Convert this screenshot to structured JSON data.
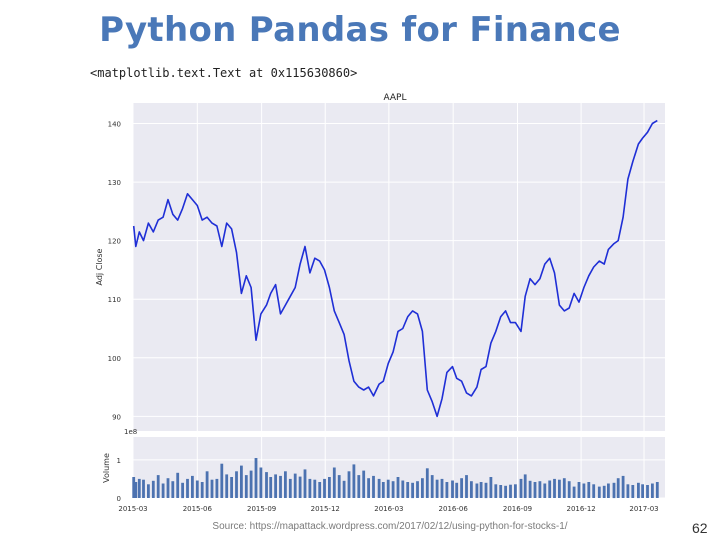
{
  "slide": {
    "title": "Python Pandas for Finance",
    "code_output": "<matplotlib.text.Text at 0x115630860>",
    "source": "Source: https://mapattack.wordpress.com/2017/02/12/using-python-for-stocks-1/",
    "page_number": "62"
  },
  "colors": {
    "title": "#4a78b8",
    "price_line": "#1f2fd6",
    "volume_bars": "#4c72b0",
    "plot_bg": "#eaeaf2",
    "grid": "#ffffff"
  },
  "chart_data": [
    {
      "type": "line",
      "title": "AAPL",
      "ylabel": "Adj Close",
      "xlabel": "",
      "xlim": [
        "2015-03-01",
        "2017-03-31"
      ],
      "ylim": [
        87.5,
        143.5
      ],
      "yticks": [
        90,
        100,
        110,
        120,
        130,
        140
      ],
      "grid": true,
      "series": [
        {
          "x": [
            "2015-03-02",
            "2015-03-05",
            "2015-03-10",
            "2015-03-16",
            "2015-03-23",
            "2015-03-30",
            "2015-04-06",
            "2015-04-13",
            "2015-04-20",
            "2015-04-27",
            "2015-05-04",
            "2015-05-11",
            "2015-05-18",
            "2015-05-25",
            "2015-06-01",
            "2015-06-08",
            "2015-06-15",
            "2015-06-22",
            "2015-06-29",
            "2015-07-06",
            "2015-07-13",
            "2015-07-20",
            "2015-07-27",
            "2015-08-03",
            "2015-08-10",
            "2015-08-17",
            "2015-08-24",
            "2015-08-31",
            "2015-09-08",
            "2015-09-14",
            "2015-09-21",
            "2015-09-28",
            "2015-10-05",
            "2015-10-12",
            "2015-10-19",
            "2015-10-26",
            "2015-11-02",
            "2015-11-09",
            "2015-11-16",
            "2015-11-23",
            "2015-11-30",
            "2015-12-07",
            "2015-12-14",
            "2015-12-21",
            "2015-12-28",
            "2016-01-04",
            "2016-01-11",
            "2016-01-18",
            "2016-01-25",
            "2016-02-01",
            "2016-02-08",
            "2016-02-16",
            "2016-02-22",
            "2016-02-29",
            "2016-03-07",
            "2016-03-14",
            "2016-03-21",
            "2016-03-28",
            "2016-04-04",
            "2016-04-11",
            "2016-04-18",
            "2016-04-25",
            "2016-05-02",
            "2016-05-09",
            "2016-05-16",
            "2016-05-23",
            "2016-05-31",
            "2016-06-06",
            "2016-06-13",
            "2016-06-20",
            "2016-06-27",
            "2016-07-05",
            "2016-07-11",
            "2016-07-18",
            "2016-07-25",
            "2016-08-01",
            "2016-08-08",
            "2016-08-15",
            "2016-08-22",
            "2016-08-29",
            "2016-09-06",
            "2016-09-12",
            "2016-09-19",
            "2016-09-26",
            "2016-10-03",
            "2016-10-10",
            "2016-10-17",
            "2016-10-24",
            "2016-10-31",
            "2016-11-07",
            "2016-11-14",
            "2016-11-21",
            "2016-11-28",
            "2016-12-05",
            "2016-12-12",
            "2016-12-19",
            "2016-12-27",
            "2017-01-03",
            "2017-01-09",
            "2017-01-17",
            "2017-01-23",
            "2017-01-30",
            "2017-02-06",
            "2017-02-13",
            "2017-02-21",
            "2017-02-27",
            "2017-03-06",
            "2017-03-13",
            "2017-03-20"
          ],
          "values": [
            122.5,
            119.0,
            121.5,
            120.0,
            123.0,
            121.5,
            123.5,
            124.0,
            127.0,
            124.5,
            123.5,
            125.5,
            128.0,
            127.0,
            126.0,
            123.5,
            124.0,
            123.0,
            122.5,
            119.0,
            123.0,
            122.0,
            118.0,
            111.0,
            114.0,
            112.0,
            103.0,
            107.5,
            109.0,
            111.0,
            112.5,
            107.5,
            109.0,
            110.5,
            112.0,
            116.0,
            119.0,
            114.5,
            117.0,
            116.5,
            115.0,
            112.0,
            108.0,
            106.0,
            104.0,
            99.5,
            96.0,
            95.0,
            94.5,
            95.0,
            93.5,
            95.5,
            96.0,
            99.0,
            101.0,
            104.5,
            105.0,
            107.0,
            108.0,
            107.5,
            104.5,
            94.5,
            92.5,
            90.0,
            93.0,
            97.5,
            98.5,
            96.5,
            96.0,
            94.0,
            93.5,
            95.0,
            98.0,
            98.5,
            102.5,
            104.5,
            107.0,
            108.0,
            106.0,
            106.0,
            104.5,
            110.5,
            113.5,
            112.5,
            113.5,
            116.0,
            117.0,
            114.5,
            109.0,
            108.0,
            108.5,
            111.0,
            109.5,
            112.0,
            114.0,
            115.5,
            116.5,
            116.0,
            118.5,
            119.5,
            120.0,
            124.0,
            130.5,
            133.5,
            136.5,
            137.5,
            138.5,
            140.0,
            140.5
          ]
        }
      ]
    },
    {
      "type": "bar",
      "title": "",
      "ylabel": "Volume",
      "xlabel": "",
      "scale_label": "1e8",
      "ylim": [
        0,
        1.6
      ],
      "yticks": [
        0,
        1
      ],
      "xlim": [
        "2015-03-01",
        "2017-03-31"
      ],
      "xticklabels": [
        "2015-03",
        "2015-06",
        "2015-09",
        "2015-12",
        "2016-03",
        "2016-06",
        "2016-09",
        "2016-12",
        "2017-03"
      ],
      "values_note_unit": "1e8 shares",
      "values": [
        0.55,
        0.42,
        0.5,
        0.48,
        0.36,
        0.45,
        0.6,
        0.38,
        0.52,
        0.44,
        0.66,
        0.4,
        0.5,
        0.58,
        0.46,
        0.42,
        0.7,
        0.48,
        0.5,
        0.9,
        0.62,
        0.55,
        0.7,
        0.85,
        0.6,
        0.72,
        1.05,
        0.8,
        0.68,
        0.55,
        0.62,
        0.58,
        0.7,
        0.5,
        0.64,
        0.56,
        0.75,
        0.5,
        0.48,
        0.42,
        0.5,
        0.55,
        0.8,
        0.6,
        0.45,
        0.7,
        0.88,
        0.6,
        0.72,
        0.52,
        0.58,
        0.5,
        0.42,
        0.48,
        0.44,
        0.55,
        0.46,
        0.42,
        0.4,
        0.44,
        0.52,
        0.78,
        0.6,
        0.48,
        0.5,
        0.42,
        0.46,
        0.4,
        0.52,
        0.6,
        0.44,
        0.38,
        0.42,
        0.4,
        0.55,
        0.36,
        0.34,
        0.32,
        0.35,
        0.36,
        0.5,
        0.62,
        0.45,
        0.42,
        0.44,
        0.38,
        0.46,
        0.5,
        0.48,
        0.52,
        0.44,
        0.3,
        0.42,
        0.38,
        0.42,
        0.36,
        0.3,
        0.32,
        0.38,
        0.4,
        0.52,
        0.58,
        0.36,
        0.34,
        0.4,
        0.36,
        0.34,
        0.38,
        0.42
      ]
    }
  ]
}
